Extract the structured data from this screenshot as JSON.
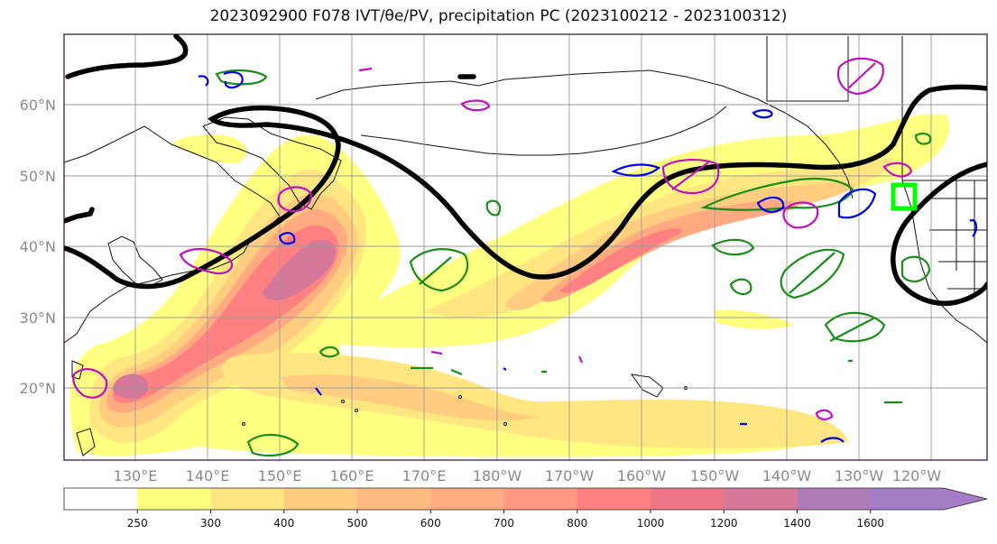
{
  "title": "2023092900 F078 IVT/θe/PV, precipitation PC (2023100212 - 2023100312)",
  "map": {
    "lat_labels": [
      "60°N",
      "50°N",
      "40°N",
      "30°N",
      "20°N"
    ],
    "lon_labels": [
      "130°E",
      "140°E",
      "150°E",
      "160°E",
      "170°E",
      "180°W",
      "170°W",
      "160°W",
      "150°W",
      "140°W",
      "130°W",
      "120°W"
    ]
  },
  "colorbar": {
    "ticks": [
      "250",
      "300",
      "400",
      "500",
      "600",
      "700",
      "800",
      "1000",
      "1200",
      "1400",
      "1600"
    ],
    "colors": [
      "#ffffff",
      "#ffff80",
      "#ffe680",
      "#ffcc80",
      "#ffbb80",
      "#ffaa80",
      "#ff9980",
      "#ff8080",
      "#ee7585",
      "#d5789a",
      "#b07cb8",
      "#a67ec8"
    ]
  },
  "colors": {
    "theta_contour": "#000000",
    "pv_green": "#1a8c1a",
    "pv_blue": "#0000ee",
    "pv_magenta": "#c010c0",
    "marker": "#00ff00"
  }
}
